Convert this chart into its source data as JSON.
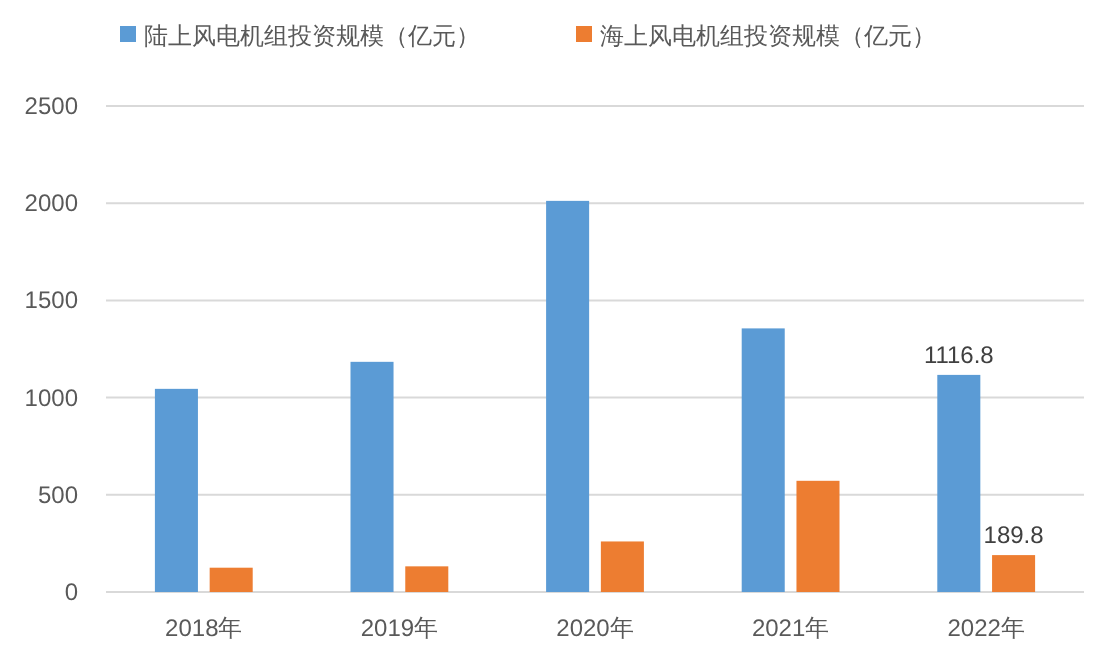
{
  "chart_data": {
    "type": "bar",
    "categories": [
      "2018年",
      "2019年",
      "2020年",
      "2021年",
      "2022年"
    ],
    "series": [
      {
        "name": "陆上风电机组投资规模（亿元）",
        "color": "#5b9bd5",
        "values": [
          1045,
          1184,
          2012,
          1356,
          1116.8
        ],
        "value_labels": [
          null,
          null,
          null,
          null,
          "1116.8"
        ]
      },
      {
        "name": "海上风电机组投资规模（亿元）",
        "color": "#ed7d31",
        "values": [
          125,
          132,
          260,
          572,
          189.8
        ],
        "value_labels": [
          null,
          null,
          null,
          null,
          "189.8"
        ]
      }
    ],
    "ylim": [
      0,
      2500
    ],
    "yticks": [
      0,
      500,
      1000,
      1500,
      2000,
      2500
    ],
    "grid": "y",
    "legend": "top"
  }
}
